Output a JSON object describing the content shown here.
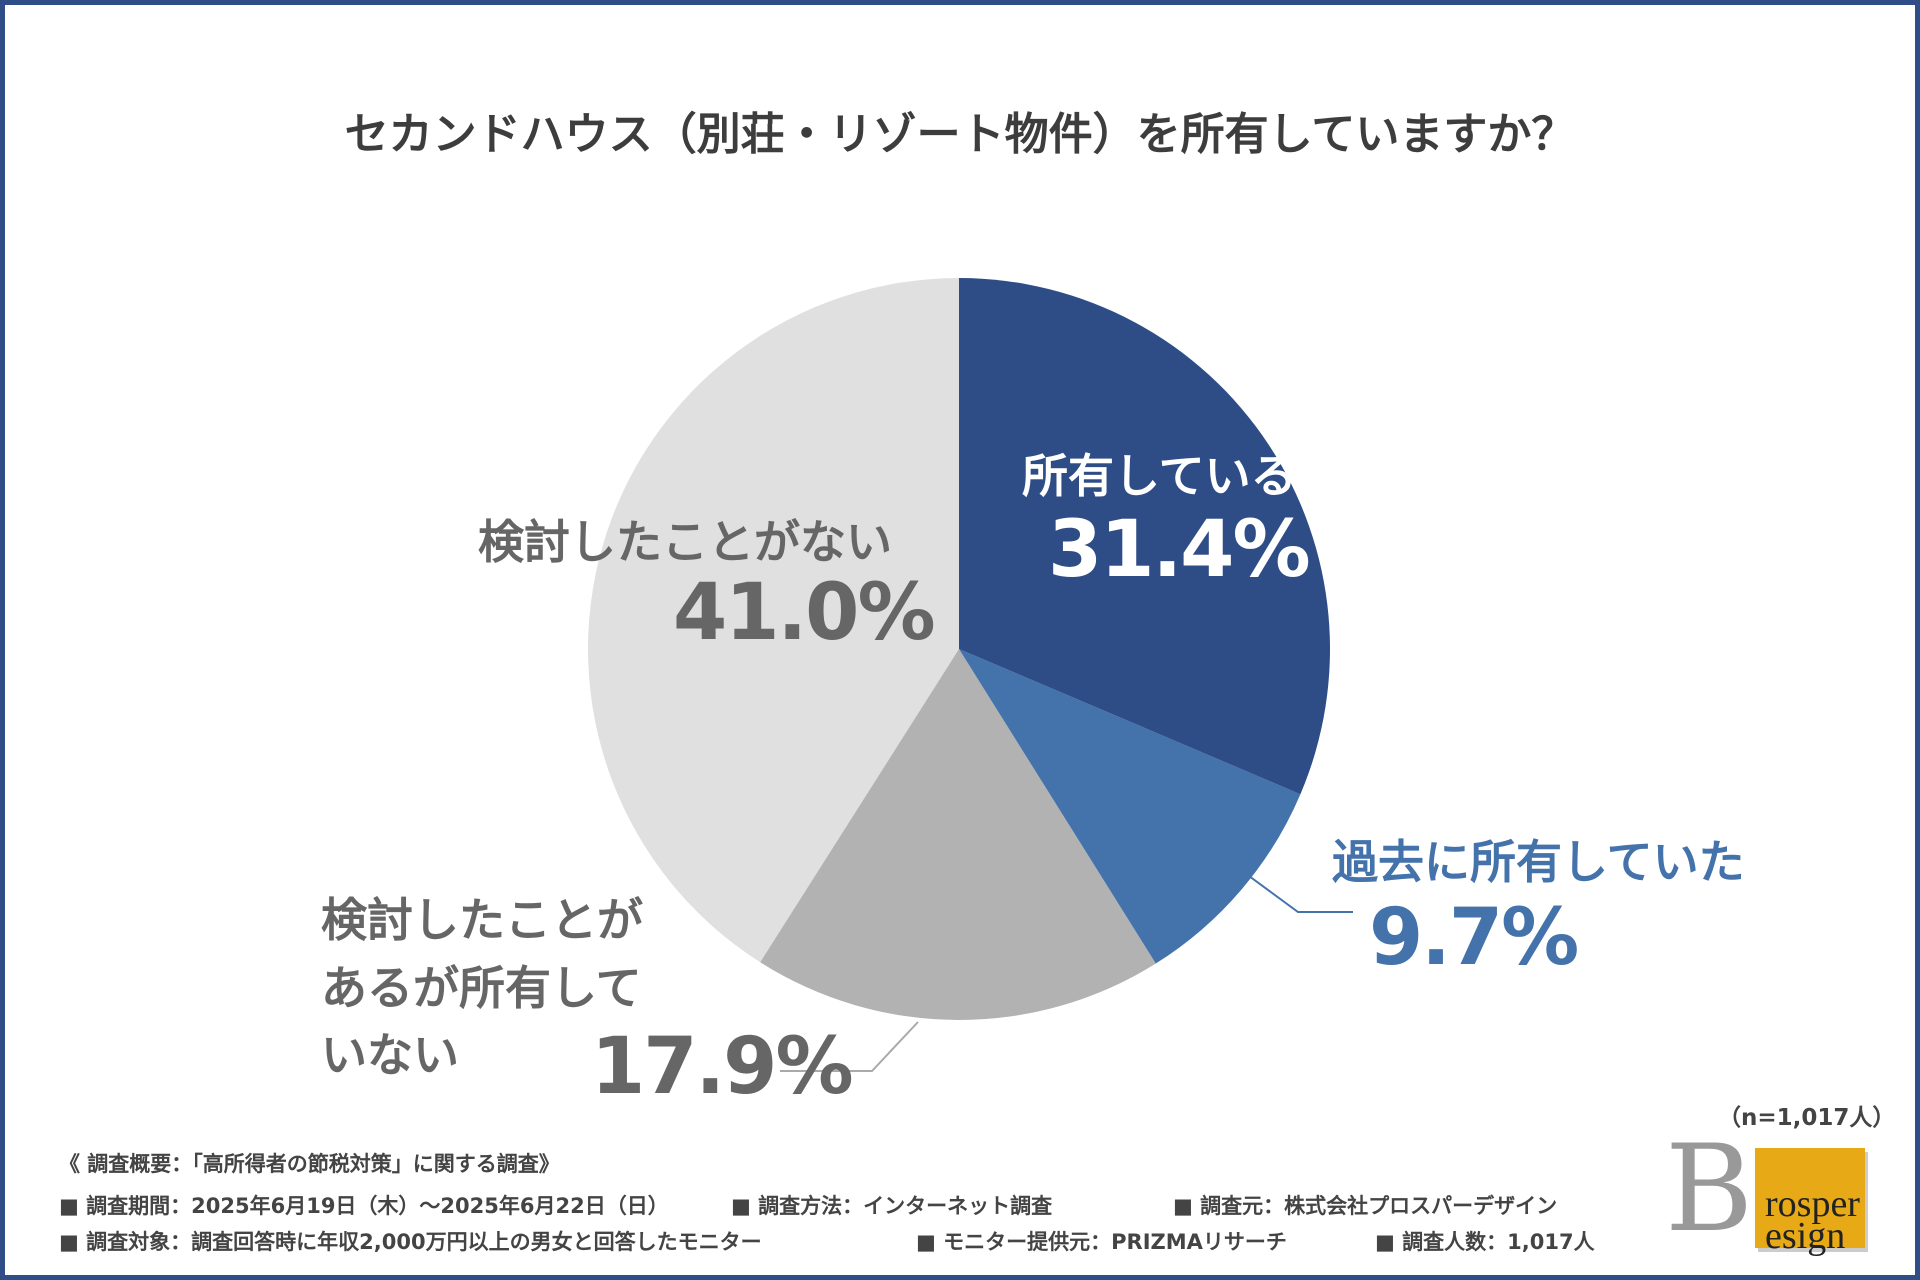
{
  "chart_data": {
    "type": "pie",
    "title": "セカンドハウス（別荘・リゾート物件）を所有していますか？",
    "sample_size": "（n=1,017人）",
    "slices": [
      {
        "label": "所有している",
        "value": 31.4,
        "display": "31.4%",
        "color": "#2e4d87"
      },
      {
        "label": "過去に所有していた",
        "value": 9.7,
        "display": "9.7%",
        "color": "#4472ab"
      },
      {
        "label": "検討したことがあるが所有していない",
        "label_lines": [
          "検討したことが",
          "あるが所有して",
          "いない"
        ],
        "value": 17.9,
        "display": "17.9%",
        "color": "#b2b2b2"
      },
      {
        "label": "検討したことがない",
        "value": 41.0,
        "display": "41.0%",
        "color": "#e0e0e0"
      }
    ]
  },
  "footer": {
    "heading": "《 調査概要：「高所得者の節税対策」に関する調査》",
    "period": "■ 調査期間：2025年6月19日（木）～2025年6月22日（日）",
    "method": "■ 調査方法：インターネット調査",
    "source": "■ 調査元：株式会社プロスパーデザイン",
    "target": "■ 調査対象：調査回答時に年収2,000万円以上の男女と回答したモニター",
    "provider": "■ モニター提供元：PRIZMAリサーチ",
    "count": "■ 調査人数：1,017人"
  },
  "logo": {
    "text_top": "rosper",
    "text_bottom": "esign",
    "letters": "PD"
  }
}
